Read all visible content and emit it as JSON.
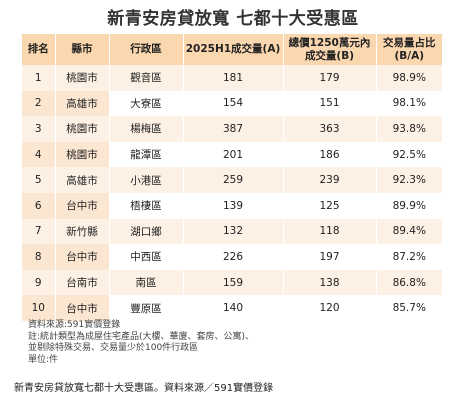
{
  "title": "新青安房貸放寬 七都十大受惠區",
  "headers": [
    "排名",
    "縣市",
    "行政區",
    "2025H1成交量(A)",
    "總價1250萬元內成交量(B)",
    "交易量占比(B/A)"
  ],
  "rows": [
    {
      "rank": "1",
      "city": "桃園市",
      "district": "觀音區",
      "a": "181",
      "b": "179",
      "ratio": "98.9%"
    },
    {
      "rank": "2",
      "city": "高雄市",
      "district": "大寮區",
      "a": "154",
      "b": "151",
      "ratio": "98.1%"
    },
    {
      "rank": "3",
      "city": "桃園市",
      "district": "楊梅區",
      "a": "387",
      "b": "363",
      "ratio": "93.8%"
    },
    {
      "rank": "4",
      "city": "桃園市",
      "district": "龍潭區",
      "a": "201",
      "b": "186",
      "ratio": "92.5%"
    },
    {
      "rank": "5",
      "city": "高雄市",
      "district": "小港區",
      "a": "259",
      "b": "239",
      "ratio": "92.3%"
    },
    {
      "rank": "6",
      "city": "台中市",
      "district": "梧棲區",
      "a": "139",
      "b": "125",
      "ratio": "89.9%"
    },
    {
      "rank": "7",
      "city": "新竹縣",
      "district": "湖口鄉",
      "a": "132",
      "b": "118",
      "ratio": "89.4%"
    },
    {
      "rank": "8",
      "city": "台中市",
      "district": "中西區",
      "a": "226",
      "b": "197",
      "ratio": "87.2%"
    },
    {
      "rank": "9",
      "city": "台南市",
      "district": "南區",
      "a": "159",
      "b": "138",
      "ratio": "86.8%"
    },
    {
      "rank": "10",
      "city": "台中市",
      "district": "豐原區",
      "a": "140",
      "b": "120",
      "ratio": "85.7%"
    }
  ],
  "notes": [
    "資料來源:591實價登錄",
    "註:統計類型為成屋住宅產品(大樓、華廈、套房、公寓)、",
    "並剔除特殊交易、交易量少於100件行政區",
    "單位:件"
  ],
  "caption": "新青安房貸放寬七都十大受惠區。資料來源／591實價登錄"
}
